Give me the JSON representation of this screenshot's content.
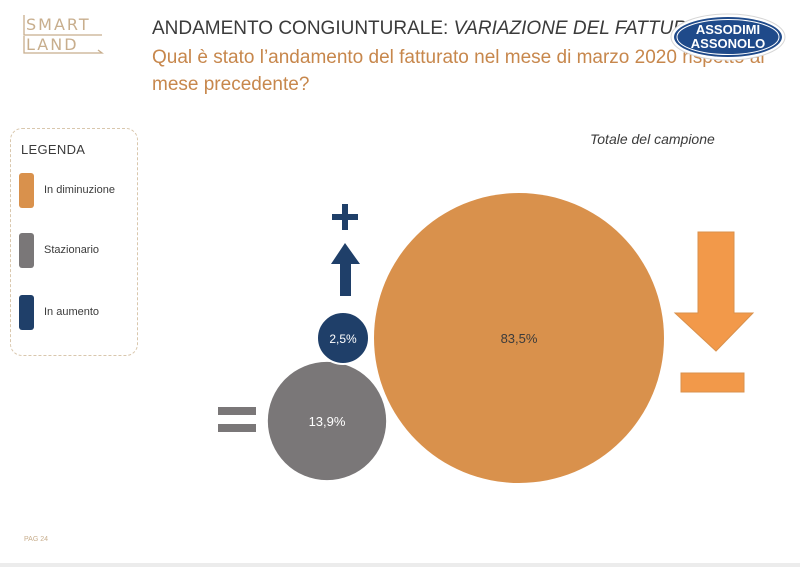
{
  "logo": {
    "line1": "SMART",
    "line2": "LAND"
  },
  "header": {
    "title_prefix": "ANDAMENTO CONGIUNTURALE: ",
    "title_italic": "VARIAZIONE DEL FATTURATO",
    "question": "Qual è stato l’andamento del fatturato nel mese di marzo 2020 rispetto al mese precedente?"
  },
  "badge": {
    "line1": "ASSODIMI",
    "line2": "ASSONOLO"
  },
  "legend": {
    "title": "LEGENDA",
    "items": [
      {
        "label": "In diminuzione",
        "color": "#d9914c"
      },
      {
        "label": "Stazionario",
        "color": "#7a7778"
      },
      {
        "label": "In aumento",
        "color": "#1f3f69"
      }
    ]
  },
  "chart_data": {
    "type": "bubble",
    "subtitle": "Totale del campione",
    "series": [
      {
        "name": "In diminuzione",
        "value": 83.5,
        "label": "83,5%",
        "color": "#d9914c",
        "icon": "down-arrow-minus-icon"
      },
      {
        "name": "Stazionario",
        "value": 13.9,
        "label": "13,9%",
        "color": "#7a7778",
        "icon": "equals-icon"
      },
      {
        "name": "In aumento",
        "value": 2.5,
        "label": "2,5%",
        "color": "#1f3f69",
        "icon": "up-arrow-plus-icon"
      }
    ]
  },
  "icon_colors": {
    "down": "#f2994a",
    "equals": "#7a7778",
    "up": "#1f3f69"
  },
  "footer": {
    "page": "PAG 24"
  }
}
